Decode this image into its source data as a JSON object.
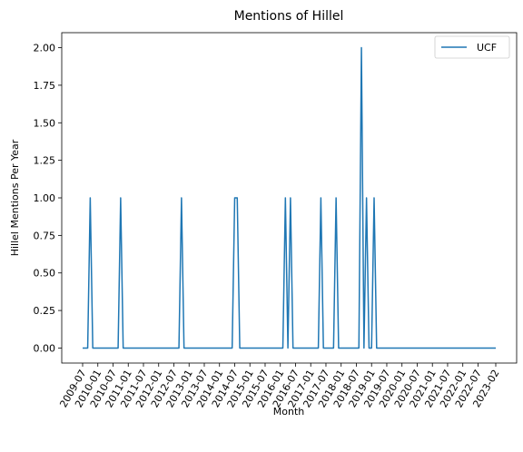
{
  "chart_data": {
    "type": "line",
    "title": "Mentions of Hillel",
    "xlabel": "Month",
    "ylabel": "Hillel Mentions Per Year",
    "x_tick_labels": [
      "2009-07",
      "2010-01",
      "2010-07",
      "2011-01",
      "2011-07",
      "2012-01",
      "2012-07",
      "2013-01",
      "2013-07",
      "2014-01",
      "2014-07",
      "2015-01",
      "2015-07",
      "2016-01",
      "2016-07",
      "2017-01",
      "2017-07",
      "2018-01",
      "2018-07",
      "2019-01",
      "2019-07",
      "2020-01",
      "2020-07",
      "2021-01",
      "2021-07",
      "2022-01",
      "2022-07",
      "2023-02"
    ],
    "y_ticks": [
      0.0,
      0.25,
      0.5,
      0.75,
      1.0,
      1.25,
      1.5,
      1.75,
      2.0
    ],
    "y_tick_labels": [
      "0.00",
      "0.25",
      "0.50",
      "0.75",
      "1.00",
      "1.25",
      "1.50",
      "1.75",
      "2.00"
    ],
    "ylim": [
      -0.1,
      2.1
    ],
    "grid": false,
    "legend_position": "top-right",
    "series": [
      {
        "name": "UCF",
        "color": "#1f77b4",
        "points": [
          [
            "2009-07",
            0
          ],
          [
            "2009-09",
            0
          ],
          [
            "2009-10",
            1
          ],
          [
            "2009-11",
            0
          ],
          [
            "2010-09",
            0
          ],
          [
            "2010-10",
            1
          ],
          [
            "2010-11",
            0
          ],
          [
            "2012-09",
            0
          ],
          [
            "2012-10",
            1
          ],
          [
            "2012-11",
            0
          ],
          [
            "2014-06",
            0
          ],
          [
            "2014-07",
            1
          ],
          [
            "2014-08",
            1
          ],
          [
            "2014-09",
            0
          ],
          [
            "2016-02",
            0
          ],
          [
            "2016-03",
            1
          ],
          [
            "2016-04",
            0
          ],
          [
            "2016-05",
            1
          ],
          [
            "2016-06",
            0
          ],
          [
            "2017-04",
            0
          ],
          [
            "2017-05",
            1
          ],
          [
            "2017-06",
            0
          ],
          [
            "2017-10",
            0
          ],
          [
            "2017-11",
            1
          ],
          [
            "2017-12",
            0
          ],
          [
            "2018-08",
            0
          ],
          [
            "2018-09",
            2
          ],
          [
            "2018-10",
            0
          ],
          [
            "2018-11",
            1
          ],
          [
            "2018-12",
            0
          ],
          [
            "2019-01",
            0
          ],
          [
            "2019-02",
            1
          ],
          [
            "2019-03",
            0
          ],
          [
            "2023-02",
            0
          ]
        ]
      }
    ]
  }
}
